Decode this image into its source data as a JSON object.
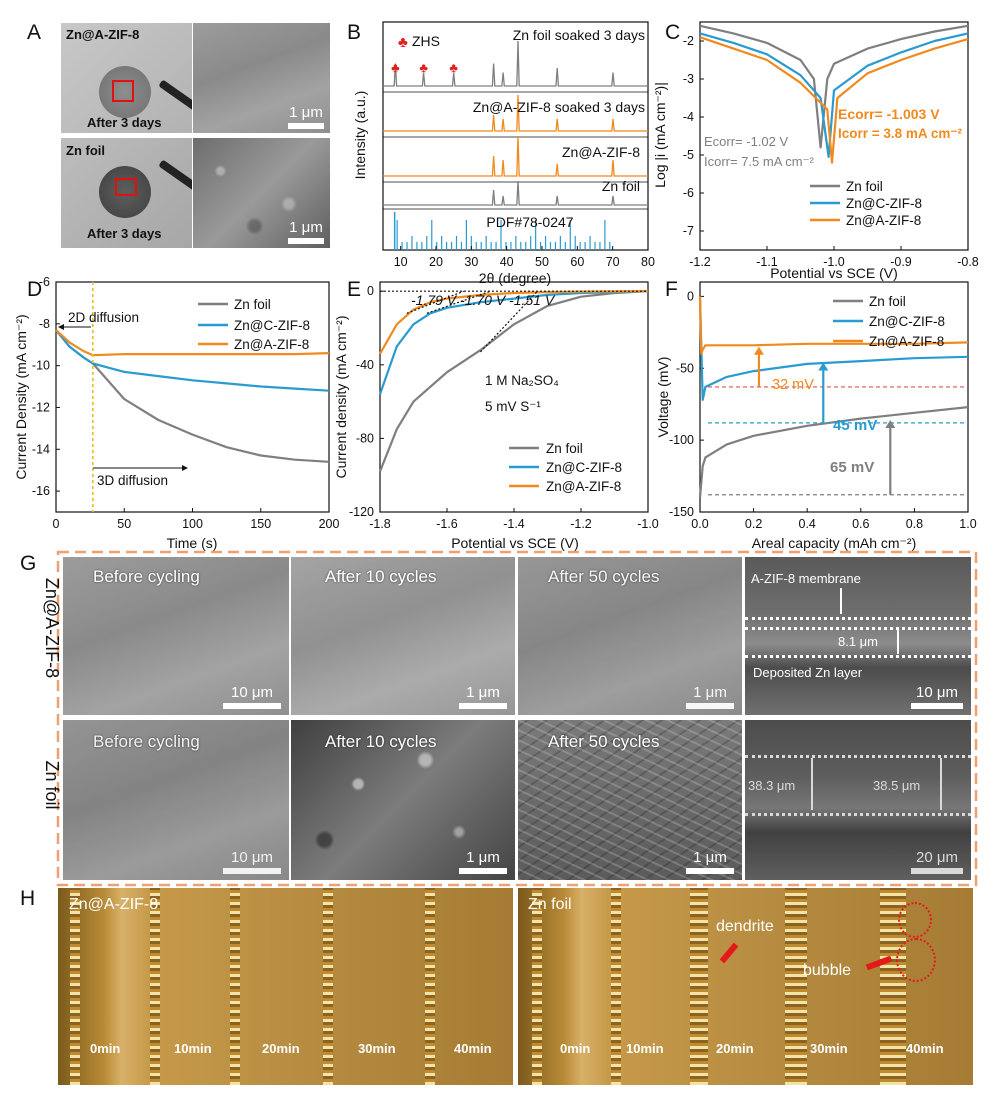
{
  "panels": {
    "A": {
      "label": "A",
      "top_title": "Zn@A-ZIF-8",
      "bottom_title": "Zn foil",
      "caption_top": "After 3 days",
      "caption_bottom": "After 3 days",
      "scalebar_top": "1 μm",
      "scalebar_bottom": "1 μm"
    },
    "B": {
      "label": "B",
      "ylabel": "Intensity (a.u.)",
      "xlabel": "2θ (degree)",
      "xticks": [
        "10",
        "20",
        "30",
        "40",
        "50",
        "60",
        "70",
        "80"
      ],
      "marker": "♣",
      "marker_label": "ZHS",
      "traces": [
        "Zn foil soaked 3 days",
        "Zn@A-ZIF-8 soaked 3 days",
        "Zn@A-ZIF-8",
        "Zn foil",
        "PDF#78-0247"
      ]
    },
    "C": {
      "label": "C",
      "ylabel": "Log |i (mA cm⁻²)|",
      "xlabel": "Potential vs SCE (V)",
      "xticks": [
        "-1.2",
        "-1.1",
        "-1.0",
        "-0.9",
        "-0.8"
      ],
      "yticks": [
        "-2",
        "-3",
        "-4",
        "-5",
        "-6",
        "-7"
      ],
      "ann_orange_1": "Ecorr= -1.003 V",
      "ann_orange_2": "Icorr = 3.8 mA cm⁻²",
      "ann_gray_1": "Ecorr= -1.02 V",
      "ann_gray_2": "Icorr= 7.5 mA cm⁻²",
      "legend": [
        "Zn foil",
        "Zn@C-ZIF-8",
        "Zn@A-ZIF-8"
      ]
    },
    "D": {
      "label": "D",
      "ylabel": "Current Density (mA cm⁻²)",
      "xlabel": "Time (s)",
      "xticks": [
        "0",
        "50",
        "100",
        "150",
        "200"
      ],
      "yticks": [
        "-6",
        "-8",
        "-10",
        "-12",
        "-14",
        "-16"
      ],
      "ann_2d": "2D diffusion",
      "ann_3d": "3D diffusion",
      "legend": [
        "Zn foil",
        "Zn@C-ZIF-8",
        "Zn@A-ZIF-8"
      ]
    },
    "E": {
      "label": "E",
      "ylabel": "Current density (mA cm⁻²)",
      "xlabel": "Potential vs SCE (V)",
      "xticks": [
        "-1.8",
        "-1.6",
        "-1.4",
        "-1.2",
        "-1.0"
      ],
      "yticks": [
        "0",
        "-40",
        "-80",
        "-120"
      ],
      "onsets": "-1.79 V -1.70 V -1.51 V",
      "cond_1": "1 M Na₂SO₄",
      "cond_2": "5 mV S⁻¹",
      "legend": [
        "Zn foil",
        "Zn@C-ZIF-8",
        "Zn@A-ZIF-8"
      ]
    },
    "F": {
      "label": "F",
      "ylabel": "Voltage (mV)",
      "xlabel": "Areal capacity (mAh cm⁻²)",
      "xticks": [
        "0.0",
        "0.2",
        "0.4",
        "0.6",
        "0.8",
        "1.0"
      ],
      "yticks": [
        "0",
        "-50",
        "-100",
        "-150"
      ],
      "ann_orange": "32 mV",
      "ann_blue": "45 mV",
      "ann_gray": "65 mV",
      "legend": [
        "Zn foil",
        "Zn@C-ZIF-8",
        "Zn@A-ZIF-8"
      ]
    },
    "G": {
      "label": "G",
      "row_top": "Zn@A-ZIF-8",
      "row_bottom": "Zn foil",
      "captions_top": [
        "Before cycling",
        "After 10 cycles",
        "After 50 cycles"
      ],
      "captions_bottom": [
        "Before  cycling",
        "After 10 cycles",
        "After 50 cycles"
      ],
      "scalebars_top": [
        "10 μm",
        "1 μm",
        "1 μm",
        "10 μm"
      ],
      "scalebars_bottom": [
        "10 μm",
        "1 μm",
        "1 μm",
        "20 μm"
      ],
      "membrane_label": "A-ZIF-8 membrane",
      "thickness_top": "8.1 μm",
      "deposit_label": "Deposited Zn layer",
      "thickness_bottom_1": "38.3 μm",
      "thickness_bottom_2": "38.5 μm"
    },
    "H": {
      "label": "H",
      "left_title": "Zn@A-ZIF-8",
      "right_title": "Zn foil",
      "times": [
        "0min",
        "10min",
        "20min",
        "30min",
        "40min"
      ],
      "dendrite": "dendrite",
      "bubble": "bubble"
    }
  },
  "colors": {
    "zn_foil": "#7f7f7f",
    "c_zif8": "#2a9bd0",
    "a_zif8": "#f08a1e",
    "marker": "#e02020",
    "frame": "#f0a070"
  },
  "chart_data": [
    {
      "panel": "B",
      "type": "line",
      "x_range": [
        5,
        80
      ],
      "zhs_peaks_2theta": [
        8.5,
        16.5,
        25
      ],
      "zn_peaks_2theta": [
        36.3,
        39,
        43.2,
        54.3,
        70.1
      ],
      "pdf_reference": "PDF#78-0247",
      "series": [
        {
          "name": "Zn foil soaked 3 days",
          "peaks": [
            [
              8.5,
              0.5
            ],
            [
              16.5,
              0.3
            ],
            [
              25,
              0.3
            ],
            [
              36.3,
              0.5
            ],
            [
              39,
              0.3
            ],
            [
              43.2,
              1.0
            ],
            [
              54.3,
              0.4
            ],
            [
              70.1,
              0.3
            ]
          ]
        },
        {
          "name": "Zn@A-ZIF-8 soaked 3 days",
          "peaks": [
            [
              36.3,
              0.4
            ],
            [
              39,
              0.3
            ],
            [
              43.2,
              0.9
            ],
            [
              54.3,
              0.3
            ],
            [
              70.1,
              0.3
            ]
          ]
        },
        {
          "name": "Zn@A-ZIF-8",
          "peaks": [
            [
              36.3,
              0.5
            ],
            [
              39,
              0.4
            ],
            [
              43.2,
              1.0
            ],
            [
              54.3,
              0.3
            ],
            [
              70.1,
              0.4
            ]
          ]
        },
        {
          "name": "Zn foil",
          "peaks": [
            [
              36.3,
              0.5
            ],
            [
              39,
              0.3
            ],
            [
              43.2,
              0.8
            ],
            [
              54.3,
              0.3
            ],
            [
              70.1,
              0.3
            ]
          ]
        }
      ]
    },
    {
      "panel": "C",
      "type": "line",
      "xlabel": "Potential vs SCE (V)",
      "ylabel": "Log |i (mA cm⁻²)|",
      "xlim": [
        -1.2,
        -0.8
      ],
      "ylim": [
        -7.5,
        -1.5
      ],
      "series": [
        {
          "name": "Zn foil",
          "x": [
            -1.2,
            -1.15,
            -1.1,
            -1.05,
            -1.03,
            -1.02,
            -1.01,
            -1.0,
            -0.95,
            -0.9,
            -0.85,
            -0.8
          ],
          "y": [
            -1.6,
            -1.8,
            -2.05,
            -2.5,
            -3.0,
            -4.8,
            -3.0,
            -2.6,
            -2.2,
            -1.95,
            -1.75,
            -1.6
          ]
        },
        {
          "name": "Zn@C-ZIF-8",
          "x": [
            -1.2,
            -1.15,
            -1.1,
            -1.05,
            -1.02,
            -1.008,
            -1.0,
            -0.95,
            -0.9,
            -0.85,
            -0.8
          ],
          "y": [
            -1.8,
            -2.05,
            -2.35,
            -2.9,
            -3.5,
            -5.05,
            -3.3,
            -2.65,
            -2.3,
            -2.0,
            -1.8
          ]
        },
        {
          "name": "Zn@A-ZIF-8",
          "x": [
            -1.2,
            -1.15,
            -1.1,
            -1.05,
            -1.01,
            -1.003,
            -0.995,
            -0.95,
            -0.9,
            -0.85,
            -0.8
          ],
          "y": [
            -1.9,
            -2.2,
            -2.5,
            -3.1,
            -3.8,
            -5.2,
            -3.5,
            -2.85,
            -2.5,
            -2.2,
            -1.95
          ]
        }
      ]
    },
    {
      "panel": "D",
      "type": "line",
      "xlabel": "Time (s)",
      "ylabel": "Current Density (mA cm⁻²)",
      "xlim": [
        0,
        200
      ],
      "ylim": [
        -17,
        -6
      ],
      "marker_x": 27,
      "series": [
        {
          "name": "Zn foil",
          "x": [
            0,
            10,
            20,
            27,
            50,
            75,
            100,
            125,
            150,
            175,
            200
          ],
          "y": [
            -8.3,
            -9.1,
            -9.6,
            -9.9,
            -11.6,
            -12.6,
            -13.3,
            -13.9,
            -14.3,
            -14.5,
            -14.6
          ]
        },
        {
          "name": "Zn@C-ZIF-8",
          "x": [
            0,
            10,
            20,
            27,
            50,
            75,
            100,
            125,
            150,
            175,
            200
          ],
          "y": [
            -8.3,
            -9.1,
            -9.6,
            -9.9,
            -10.3,
            -10.5,
            -10.7,
            -10.85,
            -11.0,
            -11.1,
            -11.2
          ]
        },
        {
          "name": "Zn@A-ZIF-8",
          "x": [
            0,
            10,
            20,
            27,
            50,
            75,
            100,
            125,
            150,
            175,
            200
          ],
          "y": [
            -8.3,
            -8.9,
            -9.3,
            -9.5,
            -9.45,
            -9.45,
            -9.45,
            -9.45,
            -9.45,
            -9.45,
            -9.4
          ]
        }
      ]
    },
    {
      "panel": "E",
      "type": "line",
      "xlabel": "Potential vs SCE (V)",
      "ylabel": "Current density (mA cm⁻²)",
      "xlim": [
        -1.8,
        -1.0
      ],
      "ylim": [
        -120,
        5
      ],
      "series": [
        {
          "name": "Zn foil",
          "x": [
            -1.8,
            -1.75,
            -1.7,
            -1.6,
            -1.5,
            -1.4,
            -1.3,
            -1.2,
            -1.1,
            -1.0
          ],
          "y": [
            -98,
            -75,
            -60,
            -44,
            -32,
            -18,
            -8,
            -3,
            -1,
            0
          ]
        },
        {
          "name": "Zn@C-ZIF-8",
          "x": [
            -1.8,
            -1.75,
            -1.7,
            -1.65,
            -1.6,
            -1.5,
            -1.4,
            -1.3,
            -1.2,
            -1.0
          ],
          "y": [
            -56,
            -30,
            -18,
            -12,
            -9,
            -6,
            -4,
            -2,
            -1,
            0
          ]
        },
        {
          "name": "Zn@A-ZIF-8",
          "x": [
            -1.8,
            -1.75,
            -1.7,
            -1.65,
            -1.6,
            -1.5,
            -1.4,
            -1.3,
            -1.2,
            -1.0
          ],
          "y": [
            -34,
            -18,
            -10,
            -6,
            -4,
            -2,
            -1,
            -0.5,
            -0.2,
            0
          ]
        }
      ]
    },
    {
      "panel": "F",
      "type": "line",
      "xlabel": "Areal capacity (mAh cm⁻²)",
      "ylabel": "Voltage (mV)",
      "xlim": [
        0,
        1.0
      ],
      "ylim": [
        -150,
        10
      ],
      "series": [
        {
          "name": "Zn foil",
          "x": [
            0.0,
            0.01,
            0.02,
            0.1,
            0.2,
            0.4,
            0.6,
            0.8,
            1.0
          ],
          "y": [
            -140,
            -118,
            -112,
            -103,
            -97,
            -90,
            -85,
            -81,
            -77
          ]
        },
        {
          "name": "Zn@C-ZIF-8",
          "x": [
            0.0,
            0.01,
            0.02,
            0.1,
            0.2,
            0.4,
            0.6,
            0.8,
            1.0
          ],
          "y": [
            0,
            -72,
            -63,
            -56,
            -52,
            -47,
            -45,
            -43,
            -42
          ]
        },
        {
          "name": "Zn@A-ZIF-8",
          "x": [
            0.0,
            0.005,
            0.01,
            0.02,
            0.1,
            0.2,
            0.4,
            0.6,
            0.8,
            1.0
          ],
          "y": [
            0,
            -40,
            -37,
            -34,
            -34,
            -34,
            -33,
            -33,
            -33,
            -32
          ]
        }
      ],
      "reference_lines_y": [
        -63,
        -88,
        -138
      ]
    }
  ]
}
